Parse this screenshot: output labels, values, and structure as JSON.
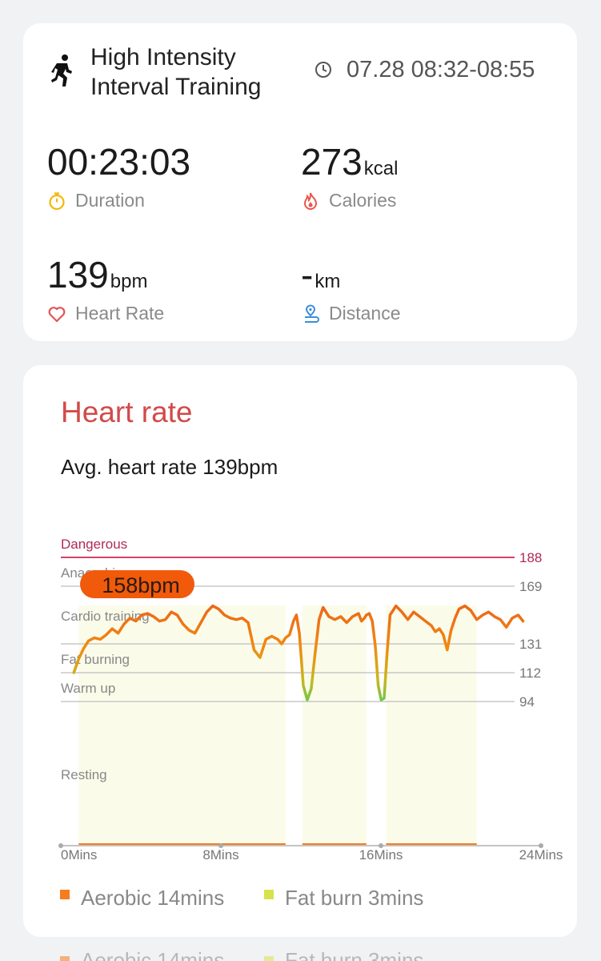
{
  "summary": {
    "workout_title": "High Intensity Interval Training",
    "time_range": "07.28 08:32-08:55",
    "duration": {
      "value": "00:23:03",
      "label": "Duration"
    },
    "calories": {
      "value": "273",
      "unit": "kcal",
      "label": "Calories"
    },
    "heart_rate": {
      "value": "139",
      "unit": "bpm",
      "label": "Heart Rate"
    },
    "distance": {
      "value": "-",
      "unit": "km",
      "label": "Distance"
    },
    "icons": [
      "hiit-runner-icon",
      "clock-icon",
      "stopwatch-icon",
      "flame-icon",
      "heart-icon",
      "location-pin-icon"
    ],
    "colors": {
      "duration_icon": "#f2b807",
      "calories_icon": "#e8574a",
      "heart_icon": "#e05555",
      "distance_icon": "#3b8ed8"
    }
  },
  "heart_rate_card": {
    "title": "Heart rate",
    "avg_text": "Avg. heart rate 139bpm",
    "tooltip": "158bpm",
    "colors": {
      "title": "#d24a4a",
      "tooltip_bg": "#f05a0a",
      "danger_line": "#d3416a"
    }
  },
  "chart_data": {
    "type": "line",
    "title": "",
    "xlabel": "",
    "ylabel": "",
    "x_unit": "min",
    "xlim": [
      0,
      24
    ],
    "x_ticks": [
      "0Mins",
      "8Mins",
      "16Mins",
      "24Mins"
    ],
    "zones": [
      {
        "name": "Dangerous",
        "threshold": 188
      },
      {
        "name": "Anaerobic",
        "threshold": 169
      },
      {
        "name": "Cardio training",
        "threshold": null
      },
      {
        "name": "Fat burning",
        "threshold": 131
      },
      {
        "name": "Warm up",
        "threshold": 112
      },
      {
        "name": "Resting",
        "threshold": 94
      }
    ],
    "thresholds": [
      188,
      169,
      131,
      112,
      94
    ],
    "grid": true,
    "series": [
      {
        "values_x": [
          0.25,
          0.5,
          0.75,
          1.0,
          1.3,
          1.6,
          1.9,
          2.2,
          2.5,
          2.8,
          3.1,
          3.4,
          3.7,
          4.0,
          4.3,
          4.6,
          4.9,
          5.2,
          5.5,
          5.8,
          6.1,
          6.4,
          6.7,
          7.0,
          7.3,
          7.6,
          7.9,
          8.2,
          8.5,
          8.8,
          9.1,
          9.4,
          9.7,
          10.0,
          10.3,
          10.6,
          10.8,
          11.0,
          11.2,
          11.4,
          11.55,
          11.7,
          11.9,
          12.1,
          12.3,
          12.5,
          12.7,
          12.9,
          13.2,
          13.5,
          13.8,
          14.1,
          14.4,
          14.7,
          14.85,
          15.0,
          15.1,
          15.25,
          15.4,
          15.55,
          15.7,
          15.85,
          16.0,
          16.15,
          16.3,
          16.6,
          16.9,
          17.2,
          17.5,
          17.8,
          18.1,
          18.4,
          18.6,
          18.8,
          19.0,
          19.2,
          19.4,
          19.6,
          19.8,
          20.1,
          20.4,
          20.7,
          21.0,
          21.3,
          21.6,
          21.9,
          22.2,
          22.5,
          22.8,
          23.05
        ],
        "values_y": [
          112,
          121,
          128,
          133,
          135,
          134,
          137,
          141,
          138,
          144,
          148,
          146,
          150,
          151,
          149,
          146,
          147,
          152,
          150,
          144,
          140,
          138,
          145,
          152,
          156,
          154,
          150,
          148,
          147,
          148,
          145,
          127,
          122,
          134,
          136,
          134,
          131,
          135,
          137,
          146,
          150,
          138,
          104,
          95,
          102,
          125,
          147,
          155,
          149,
          147,
          149,
          145,
          149,
          151,
          146,
          148,
          150,
          151,
          146,
          130,
          104,
          95,
          96,
          125,
          150,
          156,
          152,
          147,
          152,
          149,
          146,
          143,
          139,
          141,
          137,
          127,
          140,
          148,
          154,
          156,
          153,
          147,
          150,
          152,
          149,
          147,
          142,
          148,
          150,
          146
        ]
      }
    ],
    "segments": [
      {
        "start": 0.5,
        "end": 11.0
      },
      {
        "start": 11.85,
        "end": 15.1
      },
      {
        "start": 16.1,
        "end": 20.7
      }
    ],
    "highlight": {
      "label": "158bpm"
    },
    "legend_position": "bottom-left"
  },
  "legend": {
    "items": [
      {
        "label": "Aerobic 14mins",
        "color": "#f57c1f"
      },
      {
        "label": "Fat burn 3mins",
        "color": "#d8e24a"
      }
    ]
  },
  "ghost_legend": {
    "items": [
      {
        "label": "Aerobic 14mins",
        "color": "#f57c1f"
      },
      {
        "label": "Fat burn 3mins",
        "color": "#d8e24a"
      }
    ]
  }
}
